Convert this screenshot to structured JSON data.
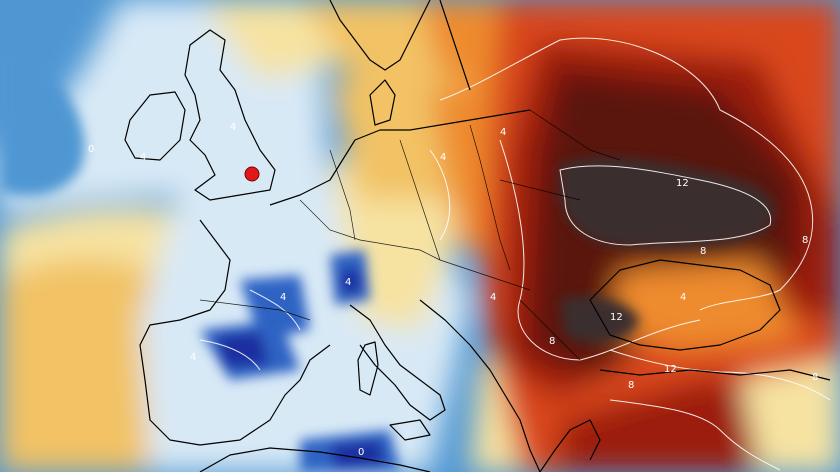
{
  "map": {
    "colors": {
      "sea_blue": "#4f97d3",
      "pale_blue": "#d8e9f6",
      "light_yellow": "#f6e3a2",
      "yellow": "#f2c265",
      "orange": "#ee8b2d",
      "red_orange": "#d9461a",
      "dark_red": "#9c1b0e",
      "very_dark_red": "#5a120c",
      "dark_brown": "#3a2e2e",
      "cold_blue": "#2f63c4",
      "deep_blue": "#1f2fa0",
      "coast_line": "#000000",
      "contour_line": "#ffffff",
      "marker_red": "#e01818"
    },
    "marker": {
      "icon": "location-dot-icon"
    },
    "contour_labels": {
      "atlantic_west": "0",
      "atlantic_south": "4",
      "england": "4",
      "france_center": "4",
      "alps": "4",
      "iberia": "4",
      "germany": "4",
      "poland": "4",
      "central_east": "12",
      "carpathians": "8",
      "east_edge": "8",
      "balkans": "4",
      "black_sea_west": "12",
      "romania": "8",
      "black_sea_east": "4",
      "anatolia_west": "8",
      "anatolia_east": "12",
      "east_far": "8",
      "north_africa": "0"
    }
  }
}
